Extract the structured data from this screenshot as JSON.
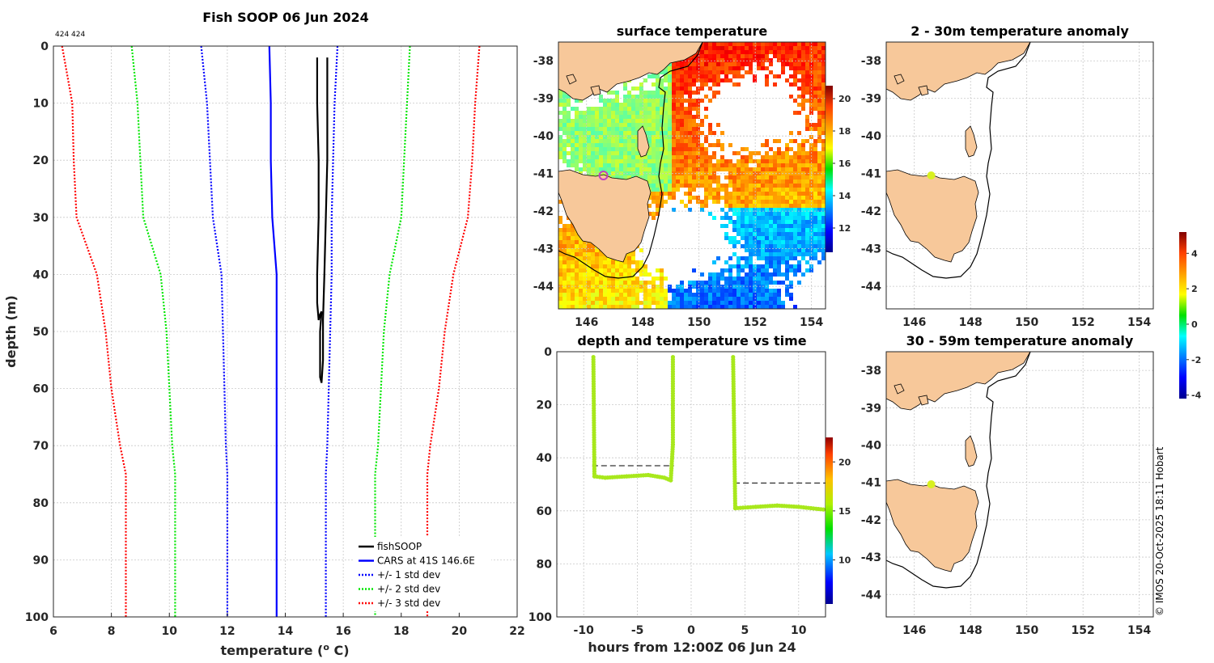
{
  "profile_chart": {
    "title": "Fish SOOP 06 Jun 2024",
    "small_label": "424 424",
    "xlabel": "temperature (",
    "xlabel_sup": "o",
    "xlabel_end": " C)",
    "ylabel": "depth (m)",
    "chart_data": {
      "type": "line",
      "xlim": [
        6,
        22
      ],
      "ylim": [
        0,
        100
      ],
      "y_reversed": true,
      "xticks": [
        6,
        8,
        10,
        12,
        14,
        16,
        18,
        20,
        22
      ],
      "yticks": [
        0,
        10,
        20,
        30,
        40,
        50,
        60,
        70,
        80,
        90,
        100
      ],
      "depth": [
        0,
        10,
        20,
        30,
        40,
        50,
        60,
        70,
        75,
        80,
        90,
        100
      ],
      "series": [
        {
          "name": "fishSOOP",
          "color": "#000000",
          "style": "solid",
          "points": [
            [
              15.1,
              2
            ],
            [
              15.1,
              10
            ],
            [
              15.15,
              20
            ],
            [
              15.15,
              30
            ],
            [
              15.1,
              40
            ],
            [
              15.1,
              45
            ],
            [
              15.15,
              48
            ],
            [
              15.2,
              47
            ],
            [
              15.25,
              46.5
            ],
            [
              15.2,
              50
            ],
            [
              15.2,
              58
            ],
            [
              15.25,
              59
            ],
            [
              15.3,
              55
            ],
            [
              15.3,
              48
            ],
            [
              15.35,
              40
            ],
            [
              15.4,
              30
            ],
            [
              15.45,
              20
            ],
            [
              15.45,
              10
            ],
            [
              15.45,
              2
            ]
          ]
        },
        {
          "name": "CARS at 41S 146.6E",
          "color": "#0000ff",
          "style": "solid",
          "values": [
            13.45,
            13.5,
            13.5,
            13.55,
            13.7,
            13.7,
            13.7,
            13.7,
            13.7,
            13.7,
            13.7,
            13.7
          ]
        },
        {
          "name": "+/- 1 std dev",
          "color": "#0000ff",
          "style": "dotted",
          "lower": [
            11.1,
            11.3,
            11.4,
            11.5,
            11.8,
            11.85,
            11.9,
            11.95,
            12.0,
            12.0,
            12.0,
            12.0
          ],
          "upper": [
            15.8,
            15.7,
            15.65,
            15.6,
            15.6,
            15.55,
            15.5,
            15.45,
            15.4,
            15.4,
            15.4,
            15.4
          ]
        },
        {
          "name": "+/- 2 std dev",
          "color": "#00e600",
          "style": "dotted",
          "lower": [
            8.7,
            8.9,
            9.0,
            9.1,
            9.7,
            9.9,
            10.0,
            10.1,
            10.2,
            10.2,
            10.2,
            10.2
          ],
          "upper": [
            18.3,
            18.2,
            18.1,
            18.0,
            17.6,
            17.4,
            17.3,
            17.2,
            17.1,
            17.1,
            17.1,
            17.1
          ]
        },
        {
          "name": "+/- 3 std dev",
          "color": "#ff0000",
          "style": "dotted",
          "lower": [
            6.3,
            6.65,
            6.7,
            6.8,
            7.5,
            7.8,
            8.0,
            8.3,
            8.5,
            8.5,
            8.5,
            8.5
          ],
          "upper": [
            20.7,
            20.55,
            20.45,
            20.3,
            19.8,
            19.5,
            19.3,
            19.0,
            18.9,
            18.9,
            18.9,
            18.9
          ]
        }
      ]
    }
  },
  "sst_map": {
    "title": "surface temperature",
    "chart_data": {
      "type": "heatmap",
      "xlim": [
        145,
        154.5
      ],
      "ylim": [
        -44.6,
        -37.5
      ],
      "xticks": [
        146,
        148,
        150,
        152,
        154
      ],
      "yticks": [
        -38,
        -39,
        -40,
        -41,
        -42,
        -43,
        -44
      ],
      "colorbar_ticks": [
        12,
        14,
        16,
        18,
        20
      ],
      "colorbar_range": [
        10.5,
        20.8
      ],
      "marker": {
        "lon": 146.6,
        "lat": -41.05,
        "color": "#c040c0"
      }
    }
  },
  "time_chart": {
    "title": "depth and temperature vs time",
    "xlabel": "hours from 12:00Z 06 Jun 24",
    "chart_data": {
      "type": "scatter",
      "xlim": [
        -12.5,
        12.5
      ],
      "ylim": [
        0,
        100
      ],
      "y_reversed": true,
      "xticks": [
        -10,
        -5,
        0,
        5,
        10
      ],
      "yticks": [
        0,
        20,
        40,
        60,
        80,
        100
      ],
      "colorbar_ticks": [
        10,
        15,
        20
      ],
      "colorbar_range": [
        5.5,
        22.5
      ],
      "point_color": "#a8e81c",
      "casts": [
        {
          "points": [
            [
              -9.1,
              2
            ],
            [
              -9.0,
              47
            ],
            [
              -8.0,
              47.5
            ],
            [
              -6.0,
              47
            ],
            [
              -4.0,
              46.5
            ],
            [
              -2.5,
              47.5
            ],
            [
              -1.9,
              48.5
            ],
            [
              -1.7,
              35
            ],
            [
              -1.7,
              2
            ]
          ]
        },
        {
          "points": [
            [
              3.9,
              2
            ],
            [
              4.1,
              59
            ],
            [
              6.0,
              58.5
            ],
            [
              8.0,
              58
            ],
            [
              10.0,
              58.5
            ],
            [
              12.3,
              59.5
            ]
          ]
        }
      ],
      "dashed": [
        {
          "y": 43,
          "x0": -9.2,
          "x1": -1.6
        },
        {
          "y": 49.5,
          "x0": 4.0,
          "x1": 12.5
        }
      ]
    }
  },
  "anom_map_1": {
    "title": "2 - 30m temperature anomaly",
    "chart_data": {
      "type": "heatmap",
      "xlim": [
        145,
        154.5
      ],
      "ylim": [
        -44.6,
        -37.5
      ],
      "xticks": [
        146,
        148,
        150,
        152,
        154
      ],
      "yticks": [
        -38,
        -39,
        -40,
        -41,
        -42,
        -43,
        -44
      ],
      "marker": {
        "lon": 146.6,
        "lat": -41.05,
        "color": "#d8f020"
      }
    }
  },
  "anom_map_2": {
    "title": "30 - 59m temperature anomaly",
    "chart_data": {
      "type": "heatmap",
      "xlim": [
        145,
        154.5
      ],
      "ylim": [
        -44.6,
        -37.5
      ],
      "xticks": [
        146,
        148,
        150,
        152,
        154
      ],
      "yticks": [
        -38,
        -39,
        -40,
        -41,
        -42,
        -43,
        -44
      ],
      "marker": {
        "lon": 146.6,
        "lat": -41.05,
        "color": "#d8f020"
      }
    }
  },
  "anomaly_colorbar": {
    "ticks": [
      -4,
      -2,
      0,
      2,
      4
    ],
    "range": [
      -4.2,
      5.2
    ]
  },
  "footer": {
    "credit": "© IMOS 20-Oct-2025 18:11 Hobart"
  },
  "colors": {
    "land": "#f7c89a",
    "dashed_line": "#000000"
  }
}
